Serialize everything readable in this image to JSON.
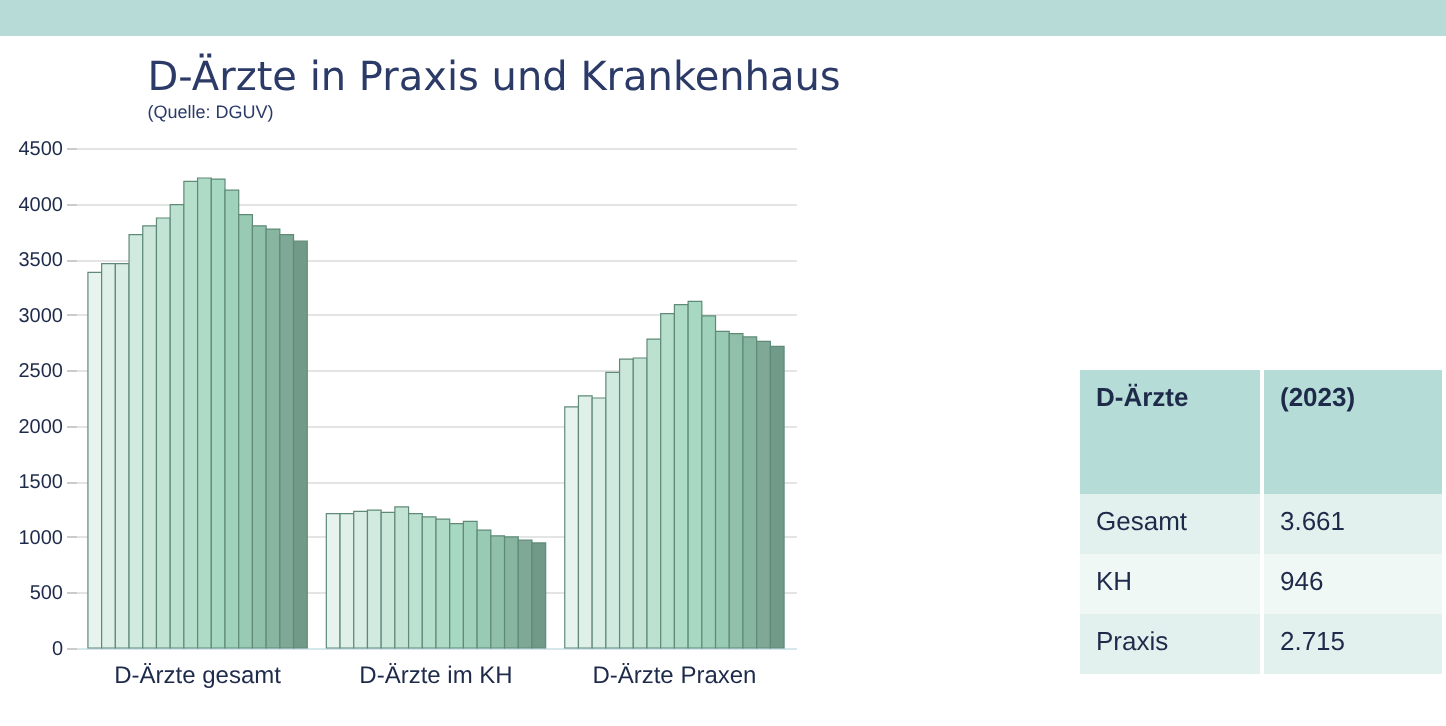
{
  "chart_data": {
    "type": "bar",
    "title": "D-Ärzte in Praxis und Krankenhaus",
    "subtitle": "(Quelle: DGUV)",
    "categories": [
      "D-Ärzte gesamt",
      "D-Ärzte im KH",
      "D-Ärzte Praxen"
    ],
    "series": [
      {
        "color": "#e6f3ee",
        "values": [
          3380,
          1210,
          2170
        ]
      },
      {
        "color": "#dff0e9",
        "values": [
          3460,
          1210,
          2270
        ]
      },
      {
        "color": "#d8ede4",
        "values": [
          3460,
          1230,
          2250
        ]
      },
      {
        "color": "#d1eadf",
        "values": [
          3720,
          1240,
          2480
        ]
      },
      {
        "color": "#cae7da",
        "values": [
          3800,
          1220,
          2600
        ]
      },
      {
        "color": "#c3e4d5",
        "values": [
          3870,
          1270,
          2610
        ]
      },
      {
        "color": "#bce1d0",
        "values": [
          3990,
          1210,
          2780
        ]
      },
      {
        "color": "#b5decb",
        "values": [
          4200,
          1180,
          3010
        ]
      },
      {
        "color": "#aedbc6",
        "values": [
          4230,
          1160,
          3090
        ]
      },
      {
        "color": "#a7d8c1",
        "values": [
          4220,
          1120,
          3120
        ]
      },
      {
        "color": "#a0d2bb",
        "values": [
          4120,
          1140,
          2990
        ]
      },
      {
        "color": "#99cab3",
        "values": [
          3900,
          1060,
          2850
        ]
      },
      {
        "color": "#91c0aa",
        "values": [
          3800,
          1010,
          2830
        ]
      },
      {
        "color": "#88b5a0",
        "values": [
          3770,
          1000,
          2800
        ]
      },
      {
        "color": "#7fa896",
        "values": [
          3720,
          970,
          2760
        ]
      },
      {
        "color": "#729a89",
        "values": [
          3661,
          946,
          2715
        ]
      }
    ],
    "ylim": [
      0,
      4500
    ],
    "yticks": [
      0,
      500,
      1000,
      1500,
      2000,
      2500,
      3000,
      3500,
      4000,
      4500
    ],
    "grid": "y",
    "legend": false,
    "annotations": [
      "D-Ärzte",
      "(2023)",
      "Gesamt",
      "3.661",
      "KH",
      "946",
      "Praxis",
      "2.715"
    ]
  }
}
